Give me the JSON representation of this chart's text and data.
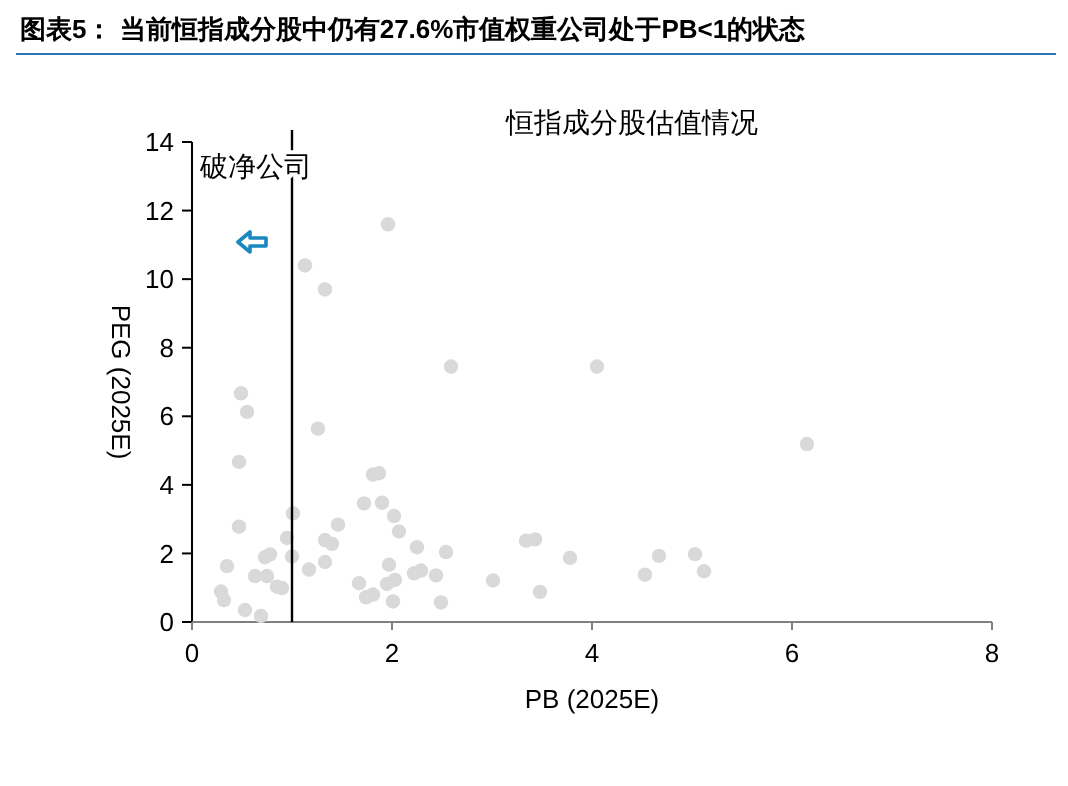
{
  "chart_data": {
    "type": "scatter",
    "title": "图表5： 当前恒指成分股中仍有27.6%市值权重公司处于PB<1的状态",
    "subtitle": "恒指成分股估值情况",
    "xlabel": "PB (2025E)",
    "ylabel": "PEG (2025E)",
    "xlim": [
      0,
      8
    ],
    "xticks": [
      0,
      2,
      4,
      6,
      8
    ],
    "ylim": [
      0,
      14
    ],
    "yticks": [
      0,
      2,
      4,
      6,
      8,
      10,
      12,
      14
    ],
    "marker": "circle",
    "ref_lines": [
      {
        "axis": "x",
        "value": 1,
        "label": "破净公司",
        "color": "#000000"
      }
    ],
    "series": [
      {
        "color": "#d9d9d9",
        "x": [
          1.96,
          1.13,
          1.33,
          2.59,
          0.49,
          0.55,
          1.26,
          0.47,
          1.81,
          1.87,
          1.72,
          1.9,
          1.01,
          2.02,
          1.46,
          0.47,
          2.07,
          0.95,
          1.33,
          1.4,
          2.25,
          0.78,
          0.73,
          1.0,
          2.54,
          1.97,
          0.35,
          1.17,
          1.33,
          2.29,
          2.22,
          0.63,
          0.75,
          2.44,
          2.03,
          1.95,
          1.67,
          3.01,
          0.85,
          0.9,
          0.29,
          0.32,
          1.81,
          1.74,
          2.01,
          2.49,
          0.53,
          0.69,
          3.48,
          3.34,
          3.43,
          4.05,
          3.78,
          4.53,
          4.67,
          5.03,
          5.12,
          6.15
        ],
        "values": [
          11.6,
          10.4,
          9.7,
          7.45,
          6.67,
          6.13,
          5.64,
          4.67,
          4.3,
          4.34,
          3.46,
          3.48,
          3.17,
          3.09,
          2.84,
          2.78,
          2.64,
          2.45,
          2.39,
          2.28,
          2.18,
          1.97,
          1.89,
          1.91,
          2.04,
          1.67,
          1.63,
          1.53,
          1.75,
          1.5,
          1.42,
          1.34,
          1.34,
          1.36,
          1.23,
          1.11,
          1.13,
          1.21,
          1.03,
          0.99,
          0.89,
          0.64,
          0.8,
          0.72,
          0.6,
          0.57,
          0.35,
          0.18,
          0.88,
          2.37,
          2.41,
          7.45,
          1.87,
          1.38,
          1.93,
          1.98,
          1.48,
          5.19
        ]
      }
    ]
  }
}
